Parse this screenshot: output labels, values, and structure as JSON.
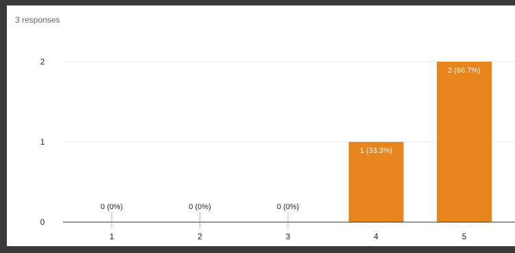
{
  "header": {
    "responses": "3 responses"
  },
  "chart_data": {
    "type": "bar",
    "categories": [
      "1",
      "2",
      "3",
      "4",
      "5"
    ],
    "values": [
      0,
      0,
      0,
      1,
      2
    ],
    "data_labels": [
      "0 (0%)",
      "0 (0%)",
      "0 (0%)",
      "1 (33.3%)",
      "2 (66.7%)"
    ],
    "y_ticks": [
      "0",
      "1",
      "2"
    ],
    "ylim": [
      0,
      2
    ],
    "title": "",
    "xlabel": "",
    "ylabel": "",
    "grid": true,
    "bar_color": "#e8841c",
    "bar_highlight": "#f08f2a",
    "zero_marker_color": "#4a8fd4"
  }
}
